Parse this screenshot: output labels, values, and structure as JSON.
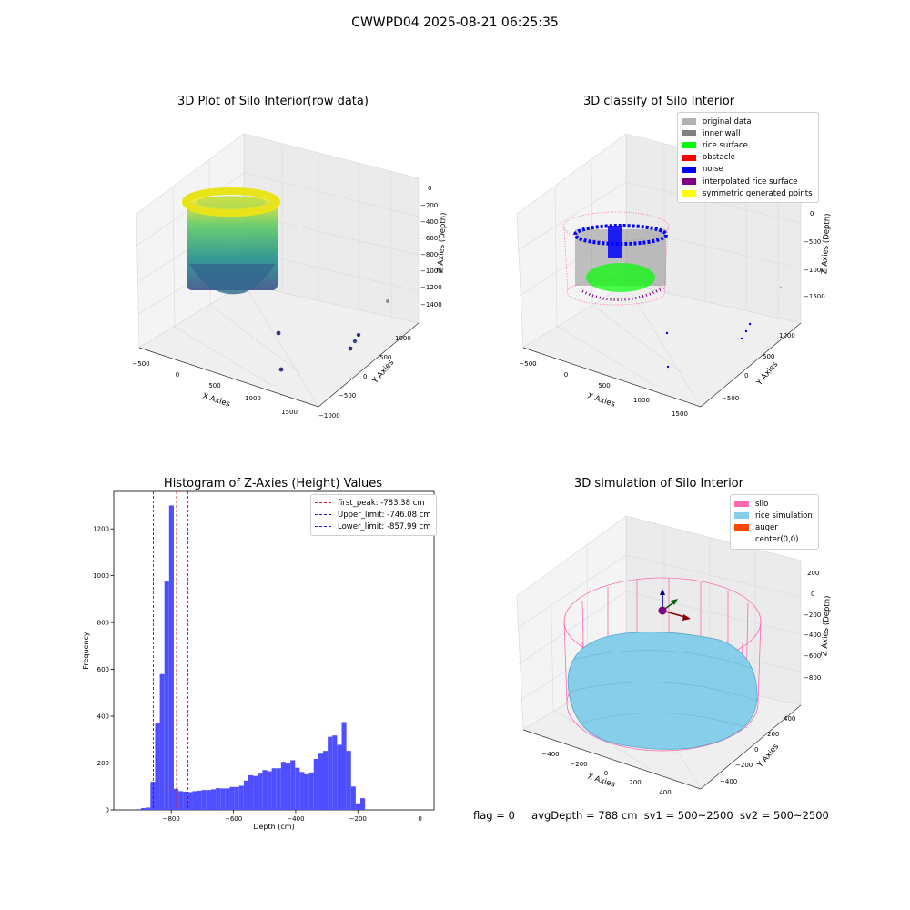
{
  "suptitle": "CWWPD04 2025-08-21 06:25:35",
  "footer": {
    "flag": "flag = 0",
    "avg_depth": "avgDepth = 788 cm",
    "sv1": "sv1 = 500~2500",
    "sv2": "sv2 = 500~2500"
  },
  "colors": {
    "histogram_bar": "#4f4fff",
    "first_peak": "#e02020",
    "limit_lines": "#1414c8",
    "silo": "#ff69b4",
    "rice_simulation": "#87ceeb",
    "auger": "#ff4500",
    "original_data": "#b2b2b2",
    "inner_wall": "#808080",
    "rice_surface": "#00ff00",
    "obstacle": "#ff0000",
    "noise": "#0000ff",
    "interpolated_rice_surface": "#800080",
    "symmetric_generated_points": "#ffff00"
  },
  "chart_data": [
    {
      "type": "scatter",
      "projection": "3d",
      "title": "3D Plot of Silo Interior(row data)",
      "xlabel": "X Axies",
      "ylabel": "Y Axies",
      "zlabel": "Z Axies (Depth)",
      "x_ticks": [
        "−500",
        "0",
        "500",
        "1000",
        "1500"
      ],
      "y_ticks": [
        "−1000",
        "−500",
        "0",
        "500",
        "1000"
      ],
      "z_ticks": [
        "0",
        "−200",
        "−400",
        "−600",
        "−800",
        "−1000",
        "−1200",
        "−1400"
      ],
      "colormap": "viridis",
      "grid": true
    },
    {
      "type": "scatter",
      "projection": "3d",
      "title": "3D classify of Silo Interior",
      "xlabel": "X Axies",
      "ylabel": "Y Axies",
      "zlabel": "Z Axies (Depth)",
      "x_ticks": [
        "−500",
        "0",
        "500",
        "1000",
        "1500"
      ],
      "y_ticks": [
        "−500",
        "0",
        "500",
        "1000"
      ],
      "z_ticks": [
        "0",
        "−500",
        "−1000",
        "−1500"
      ],
      "legend_position": "top-right",
      "legend": [
        "original data",
        "inner wall",
        "rice surface",
        "obstacle",
        "noise",
        "interpolated rice surface",
        "symmetric generated points"
      ],
      "grid": true
    },
    {
      "type": "bar",
      "title": "Histogram of Z-Axies (Height) Values",
      "xlabel": "Depth (cm)",
      "ylabel": "Frequency",
      "bin_width": 15,
      "x": [
        -912,
        -897,
        -882,
        -867,
        -852,
        -837,
        -822,
        -807,
        -792,
        -777,
        -762,
        -747,
        -732,
        -717,
        -702,
        -687,
        -672,
        -657,
        -642,
        -627,
        -612,
        -597,
        -582,
        -567,
        -552,
        -537,
        -522,
        -507,
        -492,
        -477,
        -462,
        -447,
        -432,
        -417,
        -402,
        -387,
        -372,
        -357,
        -342,
        -327,
        -312,
        -297,
        -282,
        -267,
        -252,
        -237,
        -222,
        -207,
        -192,
        -177,
        -162,
        -147,
        -132,
        -117,
        -102,
        -87,
        -72,
        -57,
        -42,
        -27,
        -12
      ],
      "values": [
        3,
        8,
        10,
        120,
        370,
        580,
        975,
        1300,
        90,
        80,
        78,
        76,
        80,
        82,
        85,
        85,
        88,
        93,
        92,
        92,
        98,
        98,
        103,
        125,
        148,
        145,
        155,
        170,
        165,
        178,
        178,
        205,
        198,
        212,
        180,
        162,
        152,
        160,
        218,
        240,
        252,
        312,
        318,
        278,
        375,
        252,
        100,
        28,
        50,
        0,
        0,
        0,
        0,
        0,
        0,
        0,
        0,
        0,
        0,
        0,
        0
      ],
      "xlim": [
        -985,
        45
      ],
      "ylim": [
        0,
        1360
      ],
      "x_ticks": [
        -800,
        -600,
        -400,
        -200,
        0
      ],
      "x_tick_labels": [
        "−800",
        "−600",
        "−400",
        "−200",
        "0"
      ],
      "y_ticks": [
        0,
        200,
        400,
        600,
        800,
        1000,
        1200
      ],
      "vlines": [
        {
          "name": "first_peak",
          "label": "first_peak: -783.38 cm",
          "x": -783.38
        },
        {
          "name": "upper_limit",
          "label": "Upper_limit: -746.08 cm",
          "x": -746.08
        },
        {
          "name": "lower_limit",
          "label": "Lower_limit: -857.99 cm",
          "x": -857.99
        }
      ],
      "legend_position": "top-right",
      "grid": false
    },
    {
      "type": "area",
      "projection": "3d",
      "title": "3D simulation of Silo Interior",
      "xlabel": "X Axies",
      "ylabel": "Y Axies",
      "zlabel": "Z Axies (Depth)",
      "x_ticks": [
        "−400",
        "−200",
        "0",
        "200",
        "400"
      ],
      "y_ticks": [
        "400",
        "200",
        "0",
        "−200",
        "−400"
      ],
      "z_ticks": [
        "200",
        "0",
        "−200",
        "−400",
        "−600",
        "−800"
      ],
      "legend_position": "top-right",
      "legend": [
        "silo",
        "rice simulation",
        "auger",
        "center(0,0)"
      ],
      "grid": true
    }
  ]
}
